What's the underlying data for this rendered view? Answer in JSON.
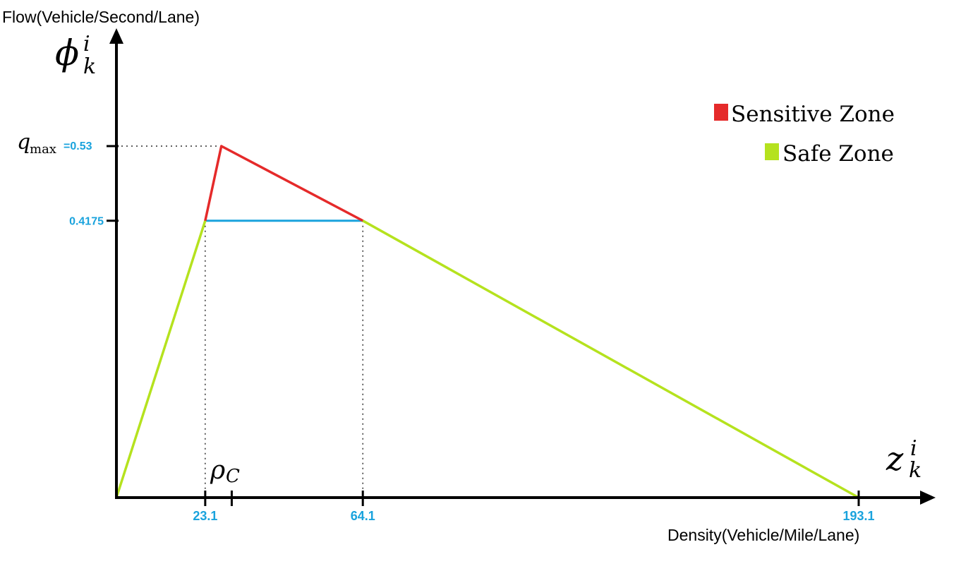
{
  "chart_data": {
    "type": "line",
    "ylabel": "Flow(Vehicle/Second/Lane)",
    "xlabel": "Density(Vehicle/Mile/Lane)",
    "y_symbol_base": "ϕ",
    "y_symbol_sup": "i",
    "y_symbol_sub": "k",
    "x_symbol_base": "z",
    "x_symbol_sup": "i",
    "x_symbol_sub": "k",
    "qmax_symbol": "q",
    "qmax_sub": "max",
    "qmax_value_label": "=0.53",
    "rho_symbol": "ρ",
    "rho_sub": "C",
    "x_ticks": [
      {
        "value": 23.1,
        "label": "23.1"
      },
      {
        "value": 64.1,
        "label": "64.1"
      },
      {
        "value": 193.1,
        "label": "193.1"
      }
    ],
    "rho_c_value": 30.0,
    "y_ticks": [
      {
        "value": 0.53,
        "label": ""
      },
      {
        "value": 0.4175,
        "label": "0.4175"
      }
    ],
    "xlim": [
      0,
      200
    ],
    "ylim": [
      0,
      0.75
    ],
    "series": [
      {
        "name": "Safe Zone",
        "color": "#b5e21e",
        "segments": [
          [
            [
              0,
              0
            ],
            [
              23.1,
              0.4175
            ]
          ],
          [
            [
              64.1,
              0.4175
            ],
            [
              193.1,
              0
            ]
          ]
        ]
      },
      {
        "name": "Sensitive Zone",
        "color": "#e52a2a",
        "segments": [
          [
            [
              23.1,
              0.4175
            ],
            [
              27.3,
              0.53
            ],
            [
              64.1,
              0.4175
            ]
          ]
        ]
      }
    ],
    "threshold_line": {
      "y": 0.4175,
      "x": [
        23.1,
        64.1
      ],
      "color": "#1aa3dd"
    },
    "legend": {
      "placement": "top-right",
      "items": [
        {
          "label": "Sensitive Zone",
          "color": "#e52a2a"
        },
        {
          "label": "Safe Zone",
          "color": "#b5e21e"
        }
      ]
    }
  }
}
